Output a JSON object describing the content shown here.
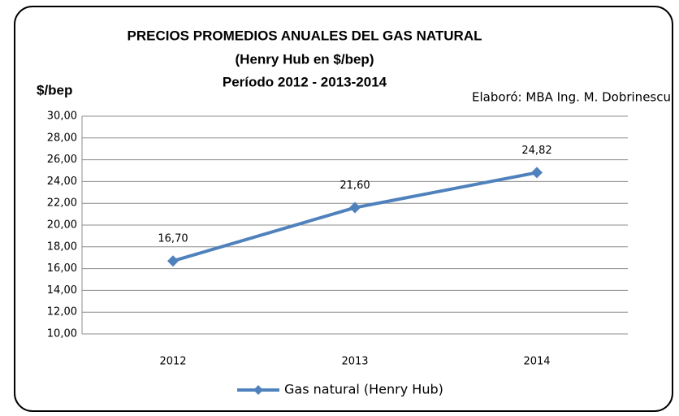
{
  "chart_data": {
    "type": "line",
    "title_lines": [
      "PRECIOS PROMEDIOS ANUALES DEL GAS NATURAL",
      "(Henry Hub en $/bep)",
      "Período 2012 - 2013-2014"
    ],
    "y_label": "$/bep",
    "annotation": "Elaboró: MBA Ing. M. Dobrinescu",
    "categories": [
      "2012",
      "2013",
      "2014"
    ],
    "series": [
      {
        "name": "Gas natural (Henry Hub)",
        "color": "#4f81bd",
        "values": [
          16.7,
          21.6,
          24.82
        ],
        "value_labels": [
          "16,70",
          "21,60",
          "24,82"
        ]
      }
    ],
    "ylim": [
      10,
      30
    ],
    "yticks": [
      {
        "value": 10,
        "label": "10,00"
      },
      {
        "value": 12,
        "label": "12,00"
      },
      {
        "value": 14,
        "label": "14,00"
      },
      {
        "value": 16,
        "label": "16,00"
      },
      {
        "value": 18,
        "label": "18,00"
      },
      {
        "value": 20,
        "label": "20,00"
      },
      {
        "value": 22,
        "label": "22,00"
      },
      {
        "value": 24,
        "label": "24,00"
      },
      {
        "value": 26,
        "label": "26,00"
      },
      {
        "value": 28,
        "label": "28,00"
      },
      {
        "value": 30,
        "label": "30,00"
      }
    ],
    "grid": true,
    "legend": "bottom"
  }
}
